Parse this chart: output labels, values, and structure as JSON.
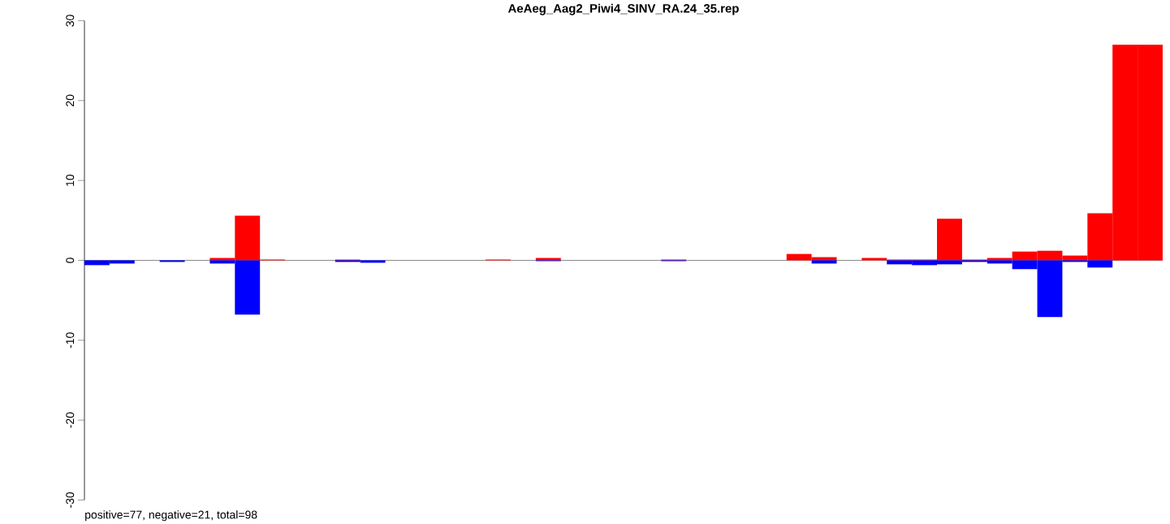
{
  "chart_data": {
    "type": "bar",
    "title": "AeAeg_Aag2_Piwi4_SINV_RA.24_35.rep",
    "categories": [
      null,
      null,
      null,
      null,
      null,
      null,
      null,
      null,
      null,
      null,
      null,
      null,
      null,
      null,
      null,
      null,
      null,
      null,
      null,
      null,
      null,
      null,
      null,
      null,
      null,
      null,
      null,
      null,
      null,
      null,
      null,
      null,
      null,
      null,
      null,
      null,
      null,
      null,
      null,
      null,
      null,
      null,
      null
    ],
    "series": [
      {
        "color": "#ff0000",
        "values": [
          null,
          null,
          null,
          null,
          null,
          0.3,
          5.6,
          0.1,
          null,
          null,
          0.1,
          null,
          null,
          null,
          null,
          null,
          0.1,
          null,
          0.3,
          null,
          null,
          null,
          null,
          0.1,
          null,
          null,
          null,
          null,
          0.8,
          0.4,
          null,
          0.3,
          0.1,
          0.1,
          5.2,
          0.1,
          0.3,
          1.1,
          1.2,
          0.6,
          5.9,
          27,
          27
        ]
      },
      {
        "color": "#0000ff",
        "values": [
          -0.6,
          -0.4,
          null,
          -0.2,
          null,
          -0.4,
          -6.8,
          null,
          null,
          null,
          -0.2,
          -0.3,
          null,
          null,
          null,
          null,
          null,
          null,
          -0.1,
          null,
          null,
          null,
          null,
          -0.1,
          null,
          null,
          null,
          null,
          null,
          -0.4,
          null,
          null,
          -0.5,
          -0.6,
          -0.5,
          -0.2,
          -0.4,
          -1.1,
          -7.1,
          -0.2,
          -0.9,
          null,
          null
        ]
      }
    ],
    "ylim": [
      -30,
      30
    ],
    "yticks": [
      -30,
      -20,
      -10,
      0,
      10,
      20,
      30
    ],
    "tick_labels": "y",
    "grid": false,
    "ref_lines": [
      {
        "axis": "y",
        "value": 0,
        "color": "#888888"
      }
    ],
    "annotations": [
      "positive=77, negative=21, total=98"
    ]
  }
}
